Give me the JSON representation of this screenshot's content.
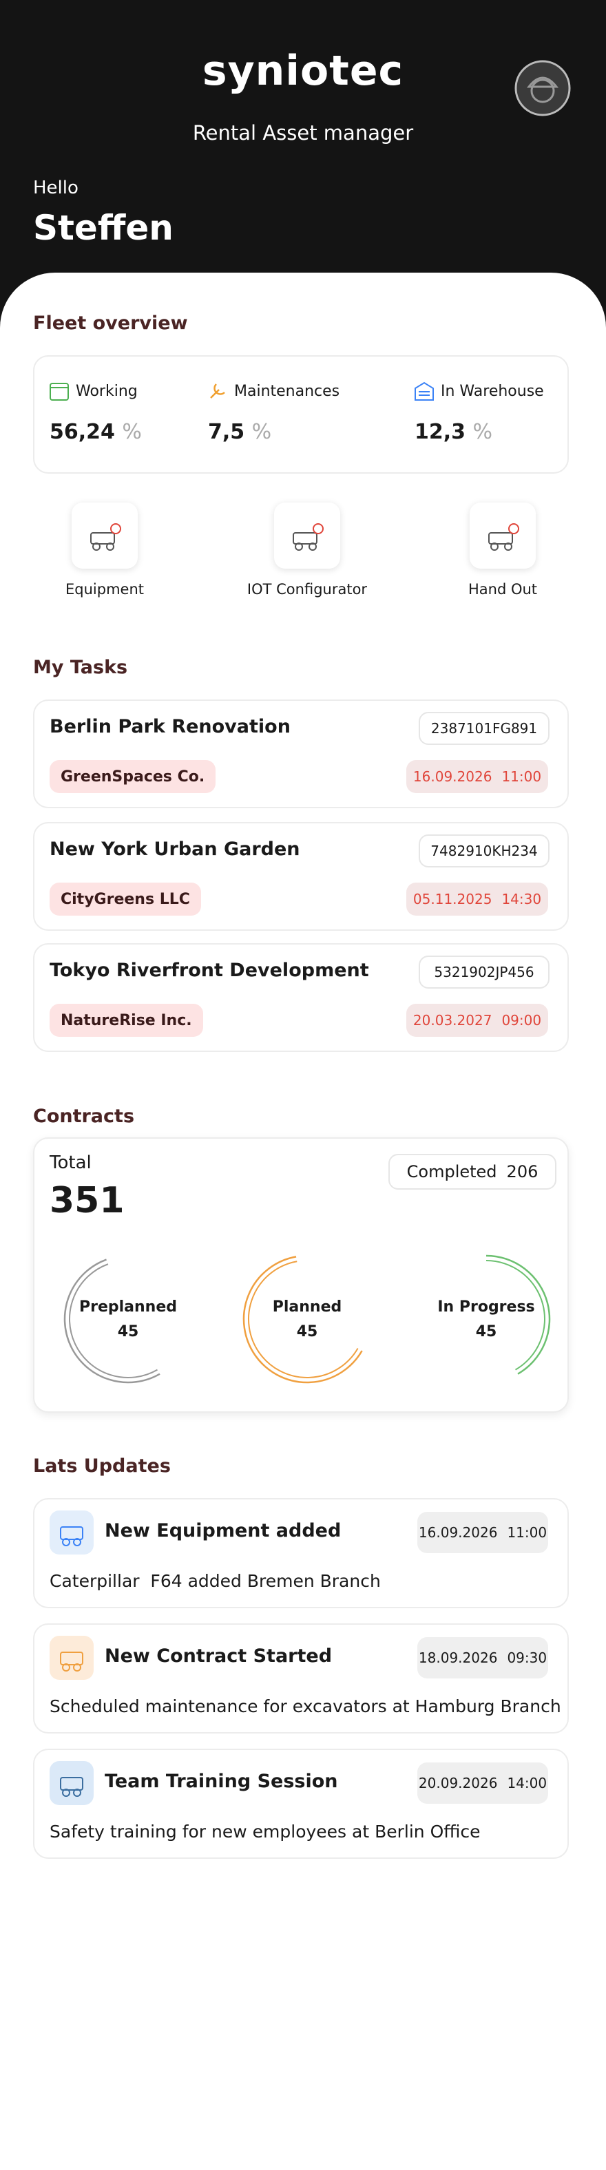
{
  "header": {
    "logo": "syniotec",
    "subtitle": "Rental Asset manager",
    "greeting": "Hello",
    "user": "Steffen"
  },
  "fleet_overview": {
    "title": "Fleet overview",
    "stats": [
      {
        "label": "Working",
        "value": "56,24",
        "unit": "%"
      },
      {
        "label": "Maintenances",
        "value": "7,5",
        "unit": "%"
      },
      {
        "label": "In Warehouse",
        "value": "12,3",
        "unit": "%"
      }
    ]
  },
  "actions": [
    "Equipment",
    "IOT Configurator",
    "Hand Out"
  ],
  "tasks": {
    "title": "My Tasks",
    "items": [
      {
        "title": "Berlin Park Renovation",
        "id": "2387101FG891",
        "client": "GreenSpaces Co.",
        "date": "16.09.2026",
        "time": "11:00"
      },
      {
        "title": "New York Urban Garden",
        "id": "7482910KH234",
        "client": "CityGreens LLC",
        "date": "05.11.2025",
        "time": "14:30"
      },
      {
        "title": "Tokyo Riverfront Development",
        "id": "5321902JP456",
        "client": "NatureRise Inc.",
        "date": "20.03.2027",
        "time": "09:00"
      }
    ]
  },
  "contracts": {
    "title": "Contracts",
    "total_label": "Total",
    "total": "351",
    "completed_label": "Completed",
    "completed": "206",
    "gauges": [
      {
        "label": "Preplanned",
        "value": "45"
      },
      {
        "label": "Planned",
        "value": "45"
      },
      {
        "label": "In Progress",
        "value": "45"
      }
    ]
  },
  "updates": {
    "title": "Lats Updates",
    "items": [
      {
        "title": "New Equipment added",
        "date": "16.09.2026",
        "time": "11:00",
        "description": "Caterpillar  F64 added Bremen Branch"
      },
      {
        "title": "New Contract Started",
        "date": "18.09.2026",
        "time": "09:30",
        "description": "Scheduled maintenance for excavators at Hamburg Branch"
      },
      {
        "title": "Team Training Session",
        "date": "20.09.2026",
        "time": "14:00",
        "description": "Safety training for new employees at Berlin Office"
      }
    ]
  }
}
